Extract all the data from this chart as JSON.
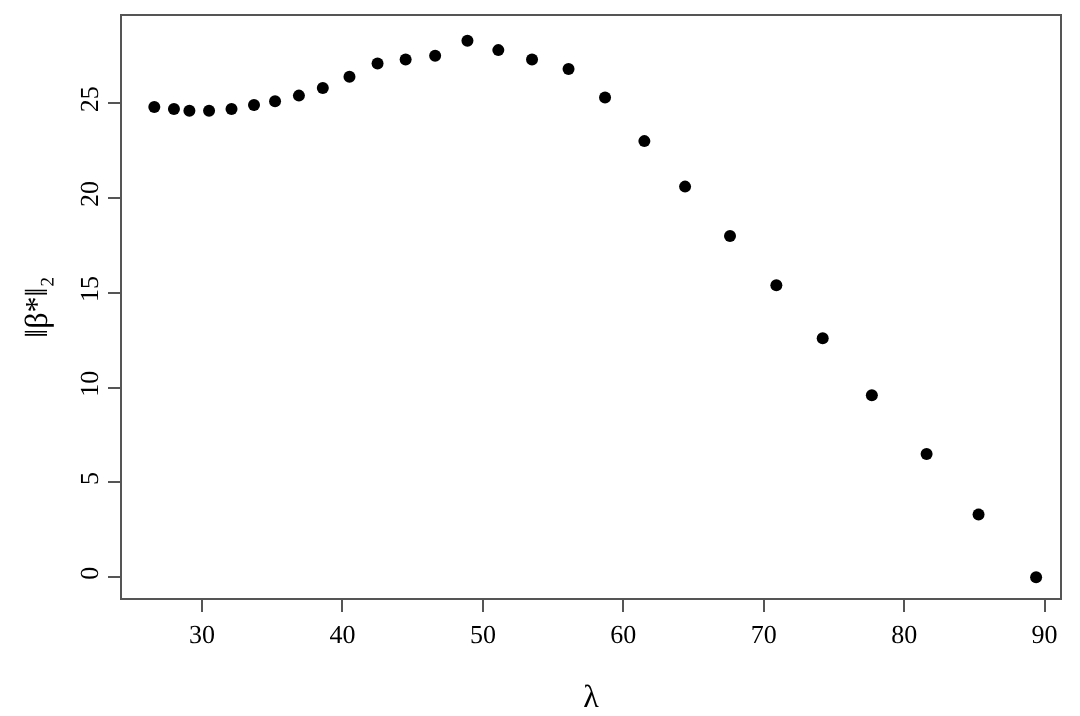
{
  "chart_data": {
    "type": "scatter",
    "xlabel": "λ",
    "ylabel": "‖β*‖₂",
    "marker": "circle",
    "grid": false,
    "x": [
      26.6,
      28.0,
      29.1,
      30.5,
      32.1,
      33.7,
      35.2,
      36.9,
      38.6,
      40.5,
      42.5,
      44.5,
      46.6,
      48.9,
      51.1,
      53.5,
      56.1,
      58.7,
      61.5,
      64.4,
      67.6,
      70.9,
      74.2,
      77.7,
      81.6,
      85.3,
      89.4
    ],
    "series": [
      {
        "color": "#000000",
        "values": [
          24.8,
          24.7,
          24.6,
          24.6,
          24.7,
          24.9,
          25.1,
          25.4,
          25.8,
          26.4,
          27.1,
          27.3,
          27.5,
          28.3,
          27.8,
          27.3,
          26.8,
          25.3,
          23.0,
          20.6,
          18.0,
          15.4,
          12.6,
          9.6,
          6.5,
          3.3,
          0
        ]
      }
    ],
    "xlim": [
      24.3,
      91.1
    ],
    "ylim": [
      -1.1,
      29.6
    ],
    "xticks": [
      30,
      40,
      50,
      60,
      70,
      80,
      90
    ],
    "yticks": [
      0,
      5,
      10,
      15,
      20,
      25
    ]
  }
}
